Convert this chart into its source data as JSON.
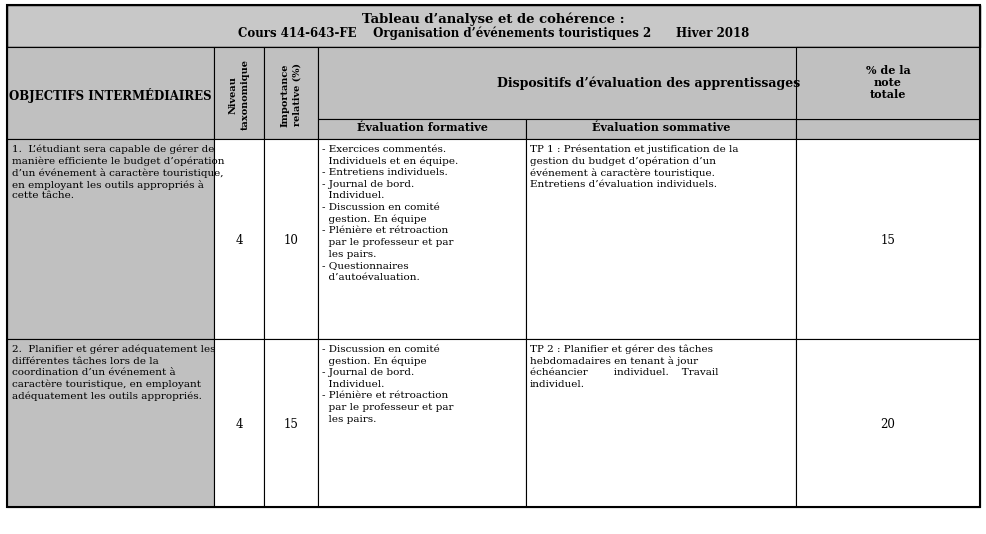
{
  "title_line1": "Tableau d’analyse et de cohérence :",
  "title_line2": "Cours 414-643-FE    Organisation d’événements touristiques 2      Hiver 2018",
  "header_bg": "#b0b0b0",
  "subheader_bg": "#c0c0c0",
  "col1_bg": "#c0c0c0",
  "white_bg": "#ffffff",
  "title_bg": "#c8c8c8",
  "border_color": "#000000",
  "col_headers_0": "OBJECTIFS INTERMÉDIAIRES",
  "col_headers_1": "Niveau\ntaxonomique",
  "col_headers_2": "Importance\nrelative (%)",
  "col_headers_3": "Dispositifs d’évaluation des apprentissages",
  "sub_header_0": "Évaluation formative",
  "sub_header_1": "Évaluation sommative",
  "sub_header_2": "% de la\nnote\ntotale",
  "row1_obj_lines": [
    "1.  L’étudiant sera capable de gérer de",
    "manière efficiente le budget d’opération",
    "d’un événement à caractère touristique,",
    "en employant les outils appropriés à",
    "cette tâche."
  ],
  "row1_niv": "4",
  "row1_imp": "10",
  "row1_form_lines": [
    "- Exercices commentés.",
    "  Individuels et en équipe.",
    "- Entretiens individuels.",
    "- Journal de bord.",
    "  Individuel.",
    "- Discussion en comité",
    "  gestion. En équipe",
    "- Plénière et rétroaction",
    "  par le professeur et par",
    "  les pairs.",
    "- Questionnaires",
    "  d’autoévaluation."
  ],
  "row1_somm_lines": [
    "TP 1 : Présentation et justification de la",
    "gestion du budget d’opération d’un",
    "événement à caractère touristique.",
    "Entretiens d’évaluation individuels."
  ],
  "row1_pct": "15",
  "row2_obj_lines": [
    "2.  Planifier et gérer adéquatement les",
    "différentes tâches lors de la",
    "coordination d’un événement à",
    "caractère touristique, en employant",
    "adéquatement les outils appropriés."
  ],
  "row2_niv": "4",
  "row2_imp": "15",
  "row2_form_lines": [
    "- Discussion en comité",
    "  gestion. En équipe",
    "- Journal de bord.",
    "  Individuel.",
    "- Plénière et rétroaction",
    "  par le professeur et par",
    "  les pairs."
  ],
  "row2_somm_lines": [
    "TP 2 : Planifier et gérer des tâches",
    "hebdomadaires en tenant à jour",
    "échéancier        individuel.    Travail",
    "individuel."
  ],
  "row2_pct": "20"
}
